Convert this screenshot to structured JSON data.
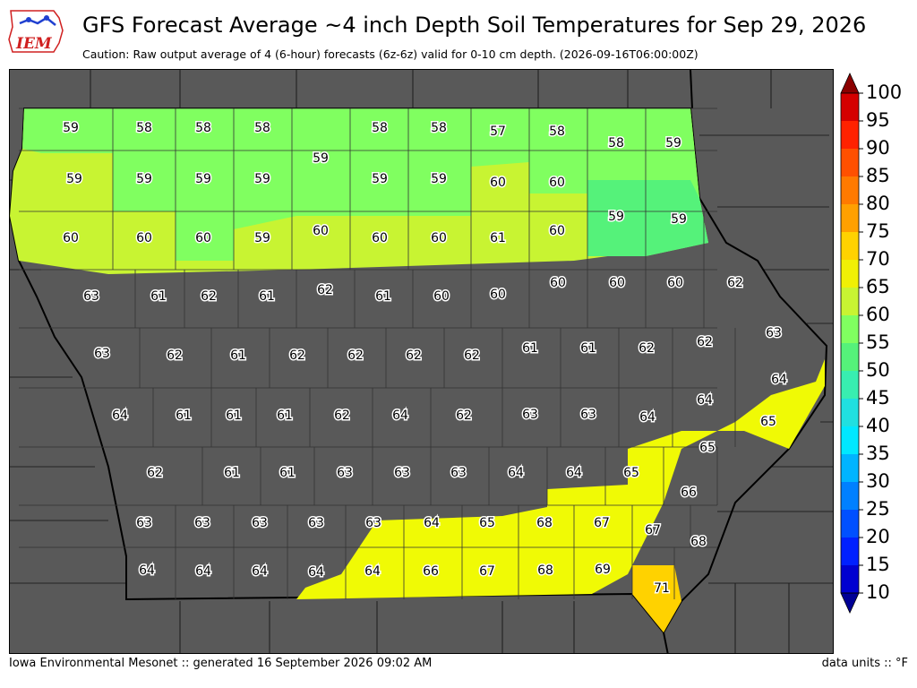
{
  "header": {
    "title": "GFS Forecast Average ~4 inch Depth Soil Temperatures for Sep 29, 2026",
    "subtitle": "Caution: Raw output average of 4 (6-hour) forecasts (6z-6z) valid for 0-10 cm depth. (2026-09-16T06:00:00Z)"
  },
  "logo": {
    "text": "IEM"
  },
  "footer": {
    "left": "Iowa Environmental Mesonet :: generated 16 September 2026 09:02 AM",
    "right": "data units :: °F"
  },
  "colors": {
    "background_land": "#595959",
    "c55": "#55f27a",
    "c58": "#80ff60",
    "c60": "#c8f432",
    "c64": "#dcfa22",
    "c66": "#f0fa05",
    "c70": "#ffd200"
  },
  "colorbar": {
    "ticks": [
      "100",
      "95",
      "90",
      "85",
      "80",
      "75",
      "70",
      "65",
      "60",
      "55",
      "50",
      "45",
      "40",
      "35",
      "30",
      "25",
      "20",
      "15",
      "10"
    ],
    "colors": [
      "#8b0000",
      "#d40000",
      "#ff2200",
      "#ff5000",
      "#ff7a00",
      "#ffa000",
      "#ffd200",
      "#f0f005",
      "#c8f432",
      "#80ff60",
      "#55f27a",
      "#38eeb0",
      "#20e0e0",
      "#00e8ff",
      "#00b4ff",
      "#0080ff",
      "#0050ff",
      "#0020ff",
      "#0000d0",
      "#000096"
    ]
  },
  "chart_data": {
    "type": "heatmap",
    "title": "GFS Forecast Average ~4 inch Depth Soil Temperatures for Sep 29, 2026",
    "units": "°F",
    "values": [
      [
        "59",
        "58",
        "58",
        "58",
        "58",
        "58",
        "57",
        "58",
        "58",
        "59"
      ],
      [
        "59",
        "59",
        "59",
        "59",
        "59",
        "59",
        "59",
        "60",
        "60"
      ],
      [
        "60",
        "60",
        "60",
        "59",
        "60",
        "60",
        "60",
        "61",
        "60",
        "59",
        "59"
      ],
      [
        "63",
        "61",
        "62",
        "61",
        "62",
        "61",
        "60",
        "60",
        "60",
        "60",
        "60",
        "62"
      ],
      [
        "63",
        "62",
        "61",
        "62",
        "62",
        "62",
        "62",
        "61",
        "61",
        "62",
        "62",
        "63"
      ],
      [
        "64",
        "61",
        "61",
        "61",
        "62",
        "64",
        "62",
        "63",
        "63",
        "64",
        "64",
        "64"
      ],
      [
        "62",
        "61",
        "61",
        "63",
        "63",
        "63",
        "64",
        "64",
        "65",
        "65",
        "65",
        "66"
      ],
      [
        "63",
        "63",
        "63",
        "63",
        "63",
        "64",
        "65",
        "68",
        "67",
        "67",
        "68"
      ],
      [
        "64",
        "64",
        "64",
        "64",
        "64",
        "66",
        "67",
        "68",
        "69",
        "71"
      ]
    ]
  }
}
